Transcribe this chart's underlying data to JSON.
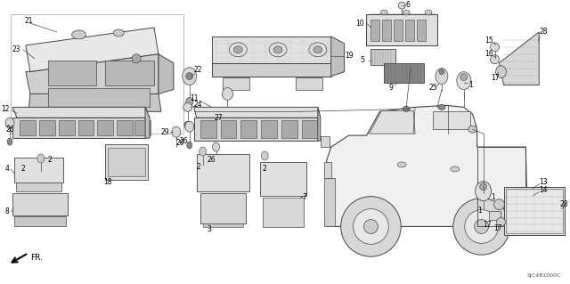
{
  "bg_color": "#ffffff",
  "diagram_code": "SJC4B1000C",
  "lc": "#444444",
  "tc": "#000000",
  "fs": 5.5,
  "fs_small": 4.8
}
